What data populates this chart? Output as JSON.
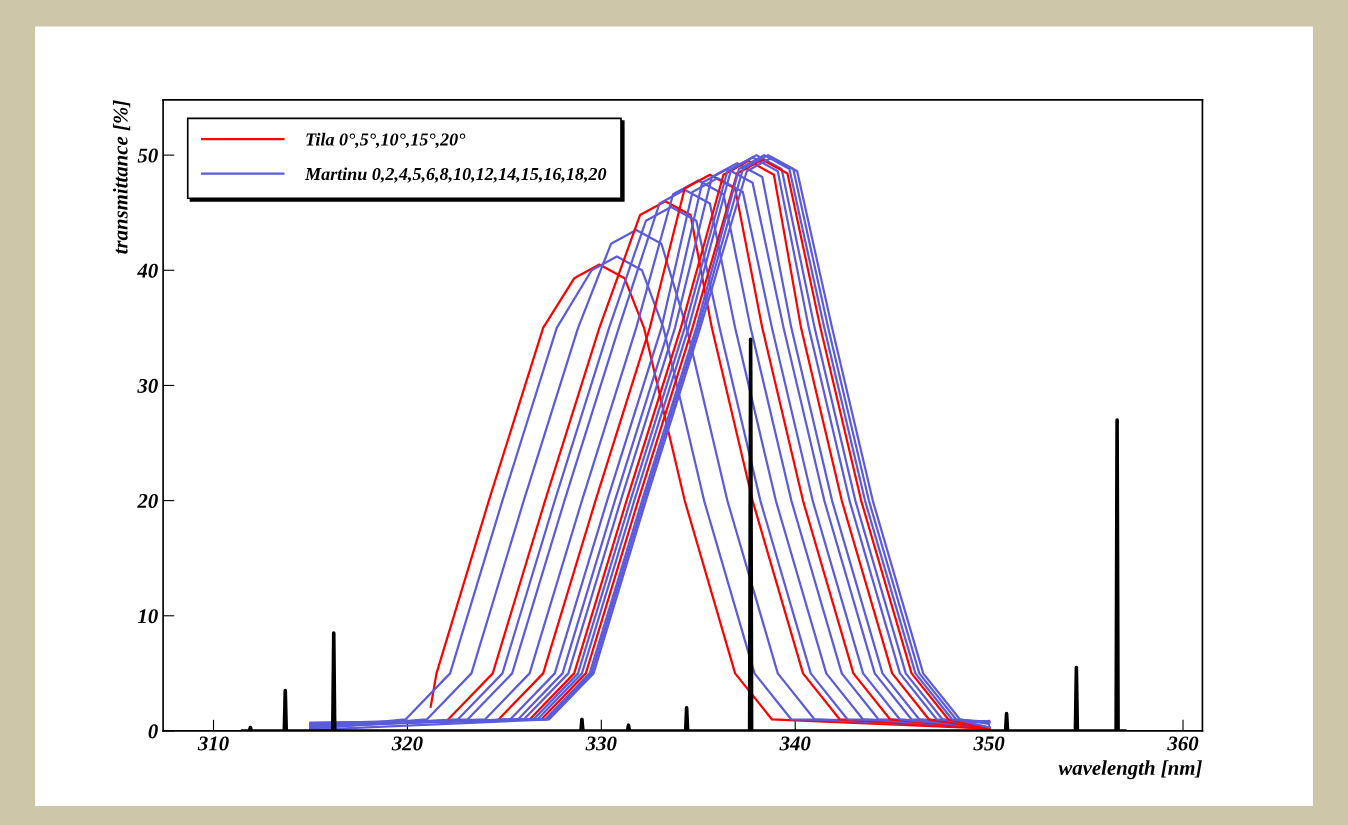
{
  "chart_data": {
    "type": "line",
    "xlabel": "wavelength [nm]",
    "ylabel": "transmittance [%]",
    "xlim": [
      307.4,
      361.0
    ],
    "xticks": [
      310,
      320,
      330,
      340,
      350,
      360
    ],
    "ylim": [
      0,
      54.8
    ],
    "yticks": [
      0,
      10,
      20,
      30,
      40,
      50
    ],
    "grid": false,
    "legend": "top left",
    "marker": "none",
    "line_style": "solid",
    "series": [
      {
        "name": "Tila 0°,5°,10°,15°,20°",
        "color": "#ff0000",
        "x": [
          321.2,
          321.5,
          324.2,
          327.0,
          328.6,
          329.9,
          331.2,
          332.2,
          334.3,
          336.9,
          338.8,
          350
        ],
        "values": [
          2.1,
          5,
          20,
          35,
          39.3,
          40.5,
          39.3,
          35,
          20,
          5,
          1,
          0.2
        ]
      },
      {
        "name": "Martinu 0,2,4,5,6,8,10,12,14,15,16,18,20",
        "color": "#5b5bdc",
        "x": [
          315,
          319.9,
          322.2,
          324.9,
          327.7,
          329.5,
          330.8,
          332.1,
          333.2,
          335.3,
          337.9,
          339.8,
          350
        ],
        "values": [
          0.2,
          1,
          5,
          20,
          35,
          40.0,
          41.2,
          40.0,
          35,
          20,
          5,
          1,
          0.8
        ]
      },
      {
        "color": "#5b5bdc",
        "x": [
          315,
          321.0,
          323.3,
          326.0,
          328.8,
          330.5,
          331.8,
          333.1,
          334.4,
          336.5,
          339.1,
          341.0,
          350
        ],
        "values": [
          0.2,
          1,
          5,
          20,
          35,
          42.3,
          43.5,
          42.3,
          35,
          20,
          5,
          1,
          0.3
        ]
      },
      {
        "color": "#ff0000",
        "x": [
          322.1,
          324.4,
          327.1,
          329.9,
          332.0,
          333.3,
          334.6,
          335.7,
          337.8,
          340.4,
          342.3,
          350
        ],
        "values": [
          1,
          5,
          20,
          35,
          44.8,
          46.0,
          44.8,
          35,
          20,
          5,
          1,
          0.2
        ]
      },
      {
        "color": "#5b5bdc",
        "x": [
          315,
          322.6,
          324.9,
          327.6,
          330.4,
          332.3,
          333.6,
          334.9,
          336.1,
          338.2,
          340.8,
          342.7,
          350
        ],
        "values": [
          0.3,
          1,
          5,
          20,
          35,
          44.3,
          45.5,
          44.3,
          35,
          20,
          5,
          1,
          0.8
        ]
      },
      {
        "color": "#5b5bdc",
        "x": [
          315,
          323.1,
          325.4,
          328.1,
          330.9,
          333.0,
          334.3,
          335.6,
          336.9,
          339.0,
          341.6,
          343.5,
          350
        ],
        "values": [
          0.3,
          1,
          5,
          20,
          35,
          45.8,
          47.0,
          45.8,
          35,
          20,
          5,
          1,
          0.3
        ]
      },
      {
        "color": "#5b5bdc",
        "x": [
          315,
          324.0,
          326.3,
          329.0,
          331.8,
          333.7,
          335.0,
          336.3,
          337.7,
          339.8,
          342.4,
          344.3,
          350
        ],
        "values": [
          0.4,
          1,
          5,
          20,
          35,
          46.6,
          47.8,
          46.6,
          35,
          20,
          5,
          1,
          0.8
        ]
      },
      {
        "color": "#ff0000",
        "x": [
          324.7,
          327.0,
          329.7,
          332.5,
          334.3,
          335.6,
          336.9,
          338.3,
          340.4,
          343.0,
          344.9,
          350
        ],
        "values": [
          1,
          5,
          20,
          35,
          47.1,
          48.3,
          47.1,
          35,
          20,
          5,
          1,
          0.2
        ]
      },
      {
        "color": "#5b5bdc",
        "x": [
          315,
          325.3,
          327.6,
          330.3,
          333.1,
          334.7,
          336.0,
          337.3,
          338.8,
          340.9,
          343.5,
          345.4,
          350
        ],
        "values": [
          0.4,
          1,
          5,
          20,
          35,
          46.8,
          48.0,
          46.8,
          35,
          20,
          5,
          1,
          0.3
        ]
      },
      {
        "color": "#5b5bdc",
        "x": [
          315,
          325.7,
          328.0,
          330.7,
          333.5,
          335.2,
          336.5,
          337.8,
          339.4,
          341.5,
          344.1,
          346.0,
          350
        ],
        "values": [
          0.5,
          1,
          5,
          20,
          35,
          47.6,
          48.8,
          47.6,
          35,
          20,
          5,
          1,
          0.8
        ]
      },
      {
        "color": "#5b5bdc",
        "x": [
          315,
          326.0,
          328.3,
          331.0,
          333.8,
          335.7,
          337.0,
          338.3,
          339.8,
          341.9,
          344.5,
          346.4,
          350
        ],
        "values": [
          0.5,
          1,
          5,
          20,
          35,
          48.1,
          49.3,
          48.1,
          35,
          20,
          5,
          1,
          0.3
        ]
      },
      {
        "color": "#ff0000",
        "x": [
          326.3,
          328.6,
          331.3,
          334.1,
          336.3,
          337.6,
          338.9,
          340.3,
          342.4,
          345.0,
          346.9,
          350
        ],
        "values": [
          1,
          5,
          20,
          35,
          48.3,
          49.5,
          48.3,
          35,
          20,
          5,
          1,
          0.2
        ]
      },
      {
        "color": "#5b5bdc",
        "x": [
          315,
          326.5,
          328.8,
          331.5,
          334.3,
          336.5,
          337.8,
          339.1,
          340.7,
          342.8,
          345.4,
          347.3,
          350
        ],
        "values": [
          0.6,
          1,
          5,
          20,
          35,
          48.6,
          49.8,
          48.6,
          35,
          20,
          5,
          1,
          0.8
        ]
      },
      {
        "color": "#5b5bdc",
        "x": [
          315,
          326.7,
          329.0,
          331.7,
          334.5,
          336.7,
          338.0,
          339.3,
          341.0,
          343.1,
          345.7,
          347.6,
          350
        ],
        "values": [
          0.6,
          1,
          5,
          20,
          35,
          48.8,
          50.0,
          48.8,
          35,
          20,
          5,
          1,
          0.3
        ]
      },
      {
        "color": "#ff0000",
        "x": [
          326.9,
          329.2,
          331.9,
          334.7,
          337.0,
          338.3,
          339.6,
          341.3,
          343.4,
          346.0,
          347.9,
          350
        ],
        "values": [
          1,
          5,
          20,
          35,
          48.4,
          49.6,
          48.4,
          35,
          20,
          5,
          1,
          0.2
        ]
      },
      {
        "color": "#5b5bdc",
        "x": [
          315,
          327.1,
          329.4,
          332.1,
          334.9,
          337.1,
          338.4,
          339.7,
          341.5,
          343.6,
          346.2,
          348.1,
          350
        ],
        "values": [
          0.7,
          1,
          5,
          20,
          35,
          48.8,
          50.0,
          48.8,
          35,
          20,
          5,
          1,
          0.8
        ]
      },
      {
        "color": "#5b5bdc",
        "x": [
          315,
          327.2,
          329.5,
          332.2,
          335.0,
          337.3,
          338.6,
          339.9,
          341.7,
          343.8,
          346.4,
          348.3,
          350
        ],
        "values": [
          0.7,
          1,
          5,
          20,
          35,
          48.8,
          50.0,
          48.8,
          35,
          20,
          5,
          1,
          0.3
        ]
      },
      {
        "color": "#5b5bdc",
        "x": [
          315,
          327.3,
          329.6,
          332.3,
          335.1,
          337.5,
          338.8,
          340.1,
          341.9,
          344.0,
          346.6,
          348.5,
          350
        ],
        "values": [
          0.1,
          1,
          5,
          20,
          35,
          48.6,
          49.8,
          48.6,
          35,
          20,
          5,
          1,
          0.6
        ]
      },
      {
        "type": "step",
        "color": "#000000",
        "x": [
          311.5,
          311.85,
          311.9,
          311.95,
          313.65,
          313.7,
          313.75,
          316.15,
          316.2,
          316.25,
          328.95,
          329.0,
          329.05,
          331.35,
          331.4,
          331.45,
          334.35,
          334.4,
          334.45,
          337.65,
          337.7,
          337.75,
          350.85,
          350.9,
          350.95,
          354.45,
          354.5,
          354.55,
          356.55,
          356.6,
          356.65,
          357.0
        ],
        "values": [
          0,
          0,
          0.3,
          0,
          0,
          3.5,
          0,
          0,
          8.5,
          0,
          0,
          1,
          0,
          0,
          0.5,
          0,
          0,
          2,
          0,
          0,
          34,
          0,
          0,
          1.5,
          0,
          0,
          5.5,
          0,
          0,
          27,
          0,
          0
        ]
      }
    ]
  }
}
